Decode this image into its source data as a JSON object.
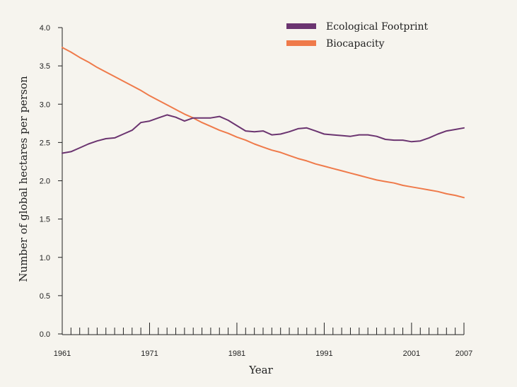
{
  "chart_data": {
    "type": "line",
    "title": "",
    "xlabel": "Year",
    "ylabel": "Number of global hectares per person",
    "xlim": [
      1961,
      2007
    ],
    "ylim": [
      0,
      4.0
    ],
    "y_ticks": [
      0.0,
      0.5,
      1.0,
      1.5,
      2.0,
      2.5,
      3.0,
      3.5,
      4.0
    ],
    "y_tick_labels": [
      "0.0",
      "0.5",
      "1.0",
      "1.5",
      "2.0",
      "2.5",
      "3.0",
      "3.5",
      "4.0"
    ],
    "x_tick_labels": [
      "1961",
      "1971",
      "1981",
      "1991",
      "2001",
      "2007"
    ],
    "x_tick_values": [
      1961,
      1971,
      1981,
      1991,
      2001,
      2007
    ],
    "grid": false,
    "legend_position": "top-right",
    "series": [
      {
        "name": "Ecological Footprint",
        "color": "#6b3470",
        "x": [
          1961,
          1962,
          1963,
          1964,
          1965,
          1966,
          1967,
          1968,
          1969,
          1970,
          1971,
          1972,
          1973,
          1974,
          1975,
          1976,
          1977,
          1978,
          1979,
          1980,
          1981,
          1982,
          1983,
          1984,
          1985,
          1986,
          1987,
          1988,
          1989,
          1990,
          1991,
          1992,
          1993,
          1994,
          1995,
          1996,
          1997,
          1998,
          1999,
          2000,
          2001,
          2002,
          2003,
          2004,
          2005,
          2006,
          2007
        ],
        "values": [
          2.36,
          2.38,
          2.43,
          2.48,
          2.52,
          2.55,
          2.56,
          2.61,
          2.66,
          2.76,
          2.78,
          2.82,
          2.86,
          2.83,
          2.78,
          2.82,
          2.82,
          2.82,
          2.84,
          2.79,
          2.72,
          2.65,
          2.64,
          2.65,
          2.6,
          2.61,
          2.64,
          2.68,
          2.69,
          2.65,
          2.61,
          2.6,
          2.59,
          2.58,
          2.6,
          2.6,
          2.58,
          2.54,
          2.53,
          2.53,
          2.51,
          2.52,
          2.56,
          2.61,
          2.65,
          2.67,
          2.69
        ]
      },
      {
        "name": "Biocapacity",
        "color": "#ef7a4a",
        "x": [
          1961,
          1962,
          1963,
          1964,
          1965,
          1966,
          1967,
          1968,
          1969,
          1970,
          1971,
          1972,
          1973,
          1974,
          1975,
          1976,
          1977,
          1978,
          1979,
          1980,
          1981,
          1982,
          1983,
          1984,
          1985,
          1986,
          1987,
          1988,
          1989,
          1990,
          1991,
          1992,
          1993,
          1994,
          1995,
          1996,
          1997,
          1998,
          1999,
          2000,
          2001,
          2002,
          2003,
          2004,
          2005,
          2006,
          2007
        ],
        "values": [
          3.74,
          3.68,
          3.61,
          3.55,
          3.48,
          3.42,
          3.36,
          3.3,
          3.24,
          3.18,
          3.11,
          3.05,
          2.99,
          2.93,
          2.87,
          2.82,
          2.76,
          2.71,
          2.66,
          2.62,
          2.57,
          2.53,
          2.48,
          2.44,
          2.4,
          2.37,
          2.33,
          2.29,
          2.26,
          2.22,
          2.19,
          2.16,
          2.13,
          2.1,
          2.07,
          2.04,
          2.01,
          1.99,
          1.97,
          1.94,
          1.92,
          1.9,
          1.88,
          1.86,
          1.83,
          1.81,
          1.78
        ]
      }
    ]
  }
}
